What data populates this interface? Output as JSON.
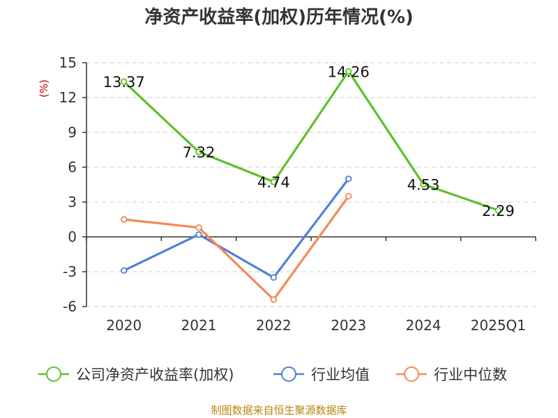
{
  "chart_data": {
    "type": "line",
    "title": "净资产收益率(加权)历年情况(%)",
    "ylabel": "(%)",
    "categories": [
      "2020",
      "2021",
      "2022",
      "2023",
      "2024",
      "2025Q1"
    ],
    "ylim": [
      -6,
      15
    ],
    "yticks": [
      15,
      12,
      9,
      6,
      3,
      0,
      -3,
      -6
    ],
    "ytick_labels": [
      "15",
      "12",
      "9",
      "6",
      "3",
      "0",
      "-3",
      "-6"
    ],
    "grid": true,
    "legend_position": "bottom",
    "series": [
      {
        "name": "公司净资产收益率(加权)",
        "color": "#5dc02b",
        "values": [
          13.37,
          7.32,
          4.74,
          14.26,
          4.53,
          2.29
        ],
        "labels": [
          "13.37",
          "7.32",
          "4.74",
          "14.26",
          "4.53",
          "2.29"
        ]
      },
      {
        "name": "行业均值",
        "color": "#4f7fda",
        "values": [
          -2.9,
          0.2,
          -3.5,
          5.0,
          null,
          null
        ]
      },
      {
        "name": "行业中位数",
        "color": "#f28a55",
        "values": [
          1.5,
          0.8,
          -5.4,
          3.5,
          null,
          null
        ]
      }
    ]
  },
  "source_text": "制图数据来自恒生聚源数据库"
}
